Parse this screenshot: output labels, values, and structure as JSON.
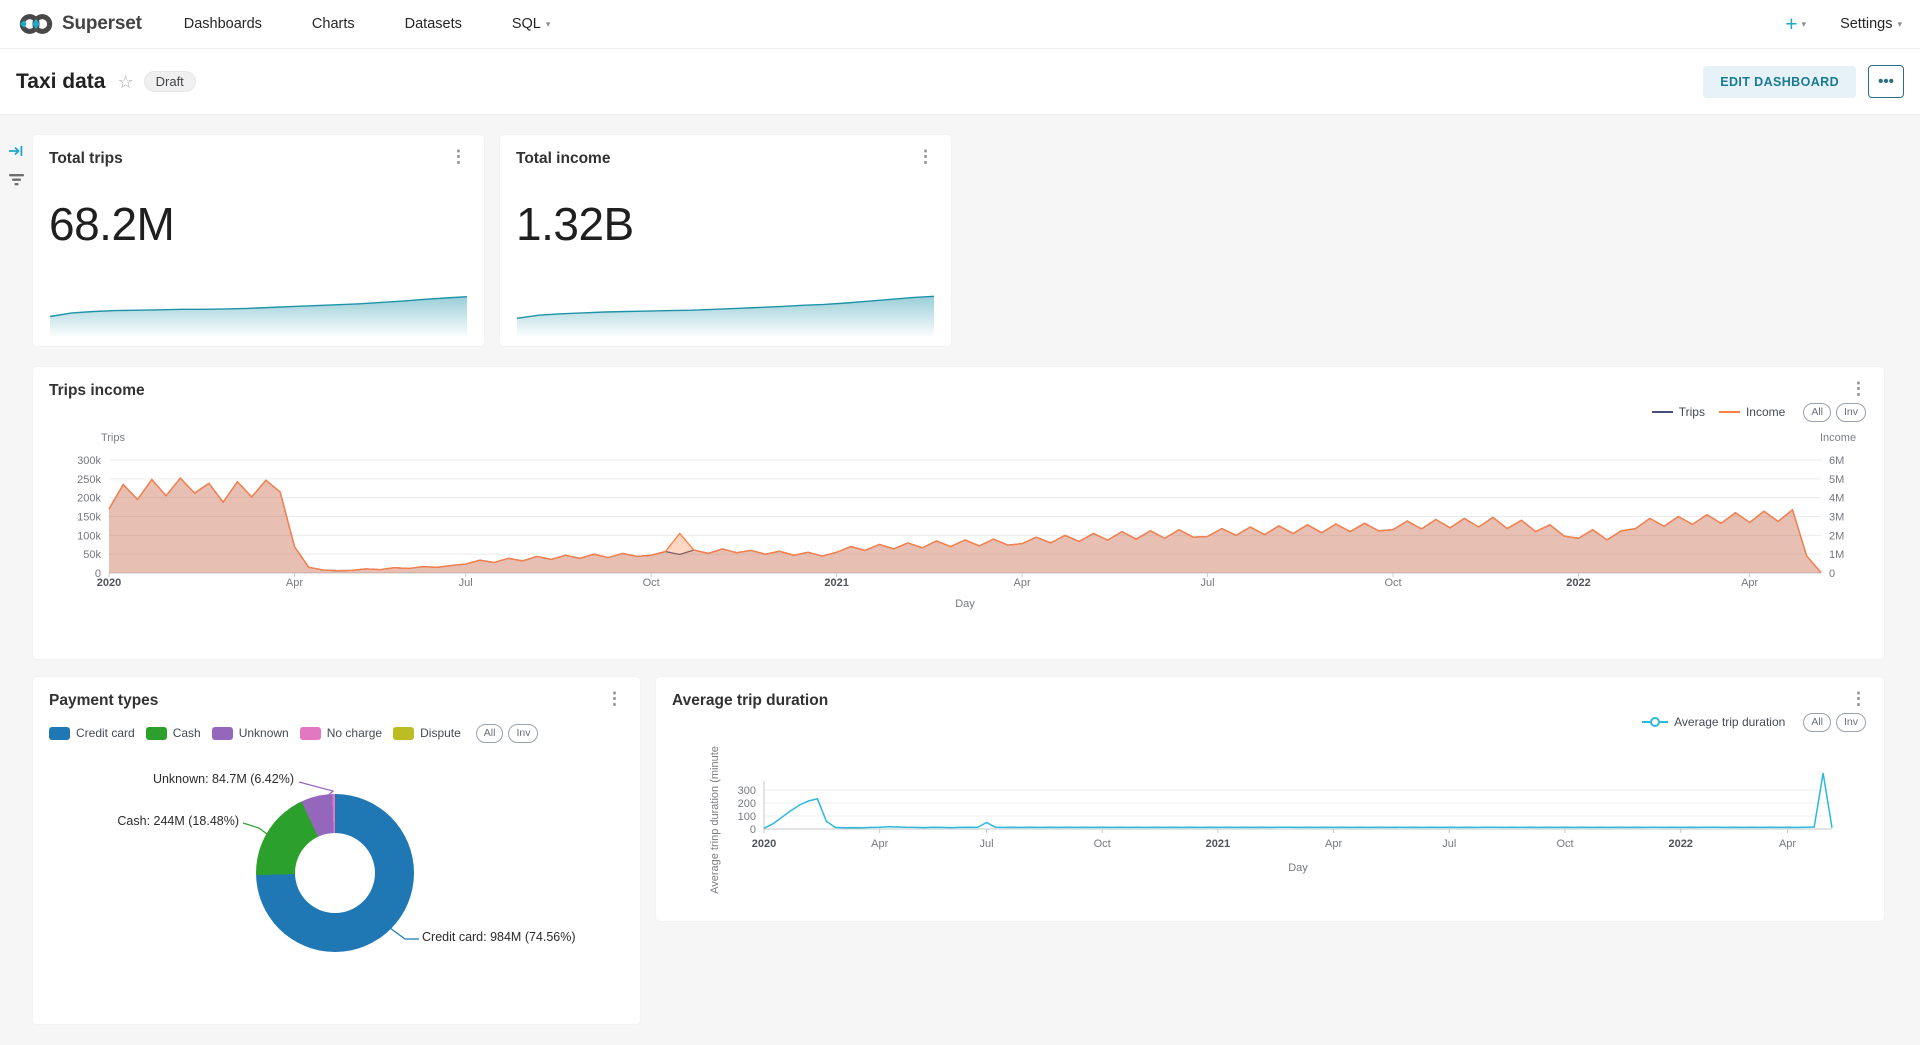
{
  "nav": {
    "brand": "Superset",
    "items": [
      {
        "label": "Dashboards",
        "caret": false
      },
      {
        "label": "Charts",
        "caret": false
      },
      {
        "label": "Datasets",
        "caret": false
      },
      {
        "label": "SQL",
        "caret": true
      }
    ],
    "plus_label": "+",
    "settings_label": "Settings"
  },
  "icons": {
    "kebab": "⋮",
    "star": "☆",
    "caret": "▾",
    "more": "•••"
  },
  "header": {
    "title": "Taxi data",
    "badge": "Draft",
    "edit_button": "EDIT DASHBOARD"
  },
  "cards": {
    "trips": {
      "title": "Total trips",
      "value": "68.2M"
    },
    "income": {
      "title": "Total income",
      "value": "1.32B"
    }
  },
  "colors": {
    "brand": "#20A7C9",
    "spark_line": "#1E93A8",
    "trips_line": "#454E7C",
    "income_line": "#FF7F44",
    "duration_line": "#2CB9DC"
  },
  "chart_data": [
    {
      "id": "total-trips-spark",
      "type": "area",
      "title": "Total trips",
      "values": [
        30,
        38,
        41,
        43,
        44,
        45,
        46,
        46,
        47,
        48,
        50,
        52,
        54,
        56,
        58,
        61,
        64,
        68,
        71,
        74
      ]
    },
    {
      "id": "total-income-spark",
      "type": "area",
      "title": "Total income",
      "values": [
        26,
        33,
        36,
        38,
        40,
        41,
        42,
        43,
        44,
        46,
        48,
        50,
        52,
        55,
        57,
        60,
        64,
        68,
        72,
        75
      ]
    },
    {
      "id": "trips-income",
      "type": "line",
      "title": "Trips income",
      "x_axis_label": "Day",
      "x_ticks": [
        {
          "label": "2020",
          "index": 0,
          "bold": true
        },
        {
          "label": "Apr",
          "index": 13,
          "bold": false
        },
        {
          "label": "Jul",
          "index": 25,
          "bold": false
        },
        {
          "label": "Oct",
          "index": 38,
          "bold": false
        },
        {
          "label": "2021",
          "index": 51,
          "bold": true
        },
        {
          "label": "Apr",
          "index": 64,
          "bold": false
        },
        {
          "label": "Jul",
          "index": 77,
          "bold": false
        },
        {
          "label": "Oct",
          "index": 90,
          "bold": false
        },
        {
          "label": "2022",
          "index": 103,
          "bold": true
        },
        {
          "label": "Apr",
          "index": 115,
          "bold": false
        }
      ],
      "y_left": {
        "title": "Trips",
        "ticks": [
          "300k",
          "250k",
          "200k",
          "150k",
          "100k",
          "50k",
          "0"
        ],
        "max": 300,
        "unit": "k"
      },
      "y_right": {
        "title": "Income",
        "ticks": [
          "6M",
          "5M",
          "4M",
          "3M",
          "2M",
          "1M",
          "0"
        ],
        "max": 6,
        "unit": "M"
      },
      "legend_buttons": [
        "All",
        "Inv"
      ],
      "series": [
        {
          "name": "Trips",
          "axis": "left",
          "color": "#454E7C",
          "fill": "rgba(69,78,124,0.18)",
          "values": [
            170,
            235,
            195,
            248,
            205,
            252,
            212,
            238,
            188,
            242,
            202,
            246,
            215,
            70,
            15,
            8,
            6,
            7,
            11,
            9,
            14,
            12,
            17,
            15,
            20,
            24,
            34,
            28,
            39,
            32,
            44,
            36,
            47,
            39,
            50,
            41,
            52,
            44,
            47,
            57,
            49,
            61,
            52,
            64,
            54,
            60,
            50,
            58,
            47,
            55,
            45,
            55,
            70,
            60,
            76,
            64,
            80,
            67,
            85,
            70,
            88,
            72,
            90,
            74,
            78,
            95,
            80,
            100,
            84,
            105,
            87,
            110,
            90,
            112,
            92,
            115,
            95,
            97,
            118,
            100,
            122,
            102,
            125,
            105,
            128,
            107,
            130,
            110,
            132,
            112,
            115,
            138,
            117,
            142,
            120,
            145,
            122,
            148,
            118,
            140,
            110,
            128,
            98,
            92,
            115,
            88,
            112,
            118,
            145,
            124,
            150,
            129,
            155,
            132,
            160,
            134,
            164,
            137,
            168,
            45,
            1
          ]
        },
        {
          "name": "Income",
          "axis": "right",
          "color": "#FF7F44",
          "fill": "rgba(255,127,68,0.32)",
          "values": [
            3.4,
            4.7,
            3.9,
            4.96,
            4.1,
            5.04,
            4.24,
            4.76,
            3.76,
            4.84,
            4.04,
            4.92,
            4.3,
            1.4,
            0.3,
            0.16,
            0.12,
            0.14,
            0.22,
            0.18,
            0.28,
            0.24,
            0.34,
            0.3,
            0.4,
            0.48,
            0.68,
            0.56,
            0.78,
            0.64,
            0.88,
            0.72,
            0.94,
            0.78,
            1.0,
            0.82,
            1.04,
            0.88,
            0.94,
            1.14,
            2.1,
            1.22,
            1.04,
            1.28,
            1.08,
            1.2,
            1.0,
            1.16,
            0.94,
            1.1,
            0.9,
            1.1,
            1.4,
            1.2,
            1.52,
            1.28,
            1.6,
            1.34,
            1.7,
            1.4,
            1.76,
            1.44,
            1.8,
            1.48,
            1.56,
            1.9,
            1.6,
            2.0,
            1.68,
            2.1,
            1.74,
            2.2,
            1.8,
            2.24,
            1.84,
            2.3,
            1.9,
            1.94,
            2.36,
            2.0,
            2.44,
            2.04,
            2.5,
            2.1,
            2.56,
            2.14,
            2.6,
            2.2,
            2.64,
            2.24,
            2.3,
            2.76,
            2.34,
            2.84,
            2.4,
            2.9,
            2.44,
            2.96,
            2.36,
            2.8,
            2.2,
            2.56,
            1.96,
            1.84,
            2.3,
            1.76,
            2.24,
            2.36,
            2.9,
            2.48,
            3.0,
            2.58,
            3.1,
            2.64,
            3.2,
            2.68,
            3.28,
            2.74,
            3.36,
            0.9,
            0.02
          ]
        }
      ]
    },
    {
      "id": "payment-types",
      "type": "pie",
      "title": "Payment types",
      "legend_buttons": [
        "All",
        "Inv"
      ],
      "slices": [
        {
          "label": "Credit card",
          "value": "984M",
          "pct": 74.56,
          "color": "#1f77b4"
        },
        {
          "label": "Cash",
          "value": "244M",
          "pct": 18.48,
          "color": "#2ca02c"
        },
        {
          "label": "Unknown",
          "value": "84.7M",
          "pct": 6.42,
          "color": "#9467bd"
        },
        {
          "label": "No charge",
          "value": "",
          "pct": 0.54,
          "color": "#e377c2"
        },
        {
          "label": "Dispute",
          "value": "",
          "pct": 0.0,
          "color": "#bcbd22"
        }
      ],
      "callouts": [
        "Unknown: 84.7M (6.42%)",
        "Cash: 244M (18.48%)",
        "Credit card: 984M (74.56%)"
      ]
    },
    {
      "id": "avg-trip-duration",
      "type": "line",
      "title": "Average trip duration",
      "x_axis_label": "Day",
      "y_label": "Average trinp duration (minute",
      "y_ticks": [
        "300",
        "200",
        "100",
        "0"
      ],
      "x_ticks": [
        {
          "label": "2020",
          "index": 0,
          "bold": true
        },
        {
          "label": "Apr",
          "index": 13,
          "bold": false
        },
        {
          "label": "Jul",
          "index": 25,
          "bold": false
        },
        {
          "label": "Oct",
          "index": 38,
          "bold": false
        },
        {
          "label": "2021",
          "index": 51,
          "bold": true
        },
        {
          "label": "Apr",
          "index": 64,
          "bold": false
        },
        {
          "label": "Jul",
          "index": 77,
          "bold": false
        },
        {
          "label": "Oct",
          "index": 90,
          "bold": false
        },
        {
          "label": "2022",
          "index": 103,
          "bold": true
        },
        {
          "label": "Apr",
          "index": 115,
          "bold": false
        }
      ],
      "legend_buttons": [
        "All",
        "Inv"
      ],
      "series": [
        {
          "name": "Average trip duration",
          "color": "#2CB9DC",
          "values": [
            5,
            40,
            90,
            140,
            185,
            215,
            232,
            60,
            12,
            10,
            11,
            10,
            12,
            14,
            18,
            15,
            13,
            12,
            11,
            13,
            12,
            11,
            12,
            13,
            12,
            50,
            14,
            12,
            13,
            12,
            14,
            12,
            13,
            12,
            13,
            12,
            13,
            12,
            13,
            12,
            14,
            12,
            13,
            12,
            13,
            12,
            13,
            12,
            13,
            12,
            13,
            12,
            13,
            12,
            14,
            12,
            13,
            12,
            13,
            14,
            12,
            13,
            12,
            13,
            12,
            14,
            12,
            13,
            12,
            14,
            12,
            13,
            12,
            14,
            12,
            13,
            12,
            13,
            12,
            14,
            12,
            13,
            14,
            12,
            13,
            12,
            14,
            12,
            13,
            12,
            13,
            12,
            14,
            12,
            13,
            12,
            14,
            12,
            13,
            12,
            14,
            12,
            13,
            12,
            13,
            12,
            13,
            13,
            12,
            14,
            12,
            13,
            12,
            14,
            12,
            13,
            12,
            14,
            15,
            430,
            10
          ]
        }
      ]
    }
  ]
}
